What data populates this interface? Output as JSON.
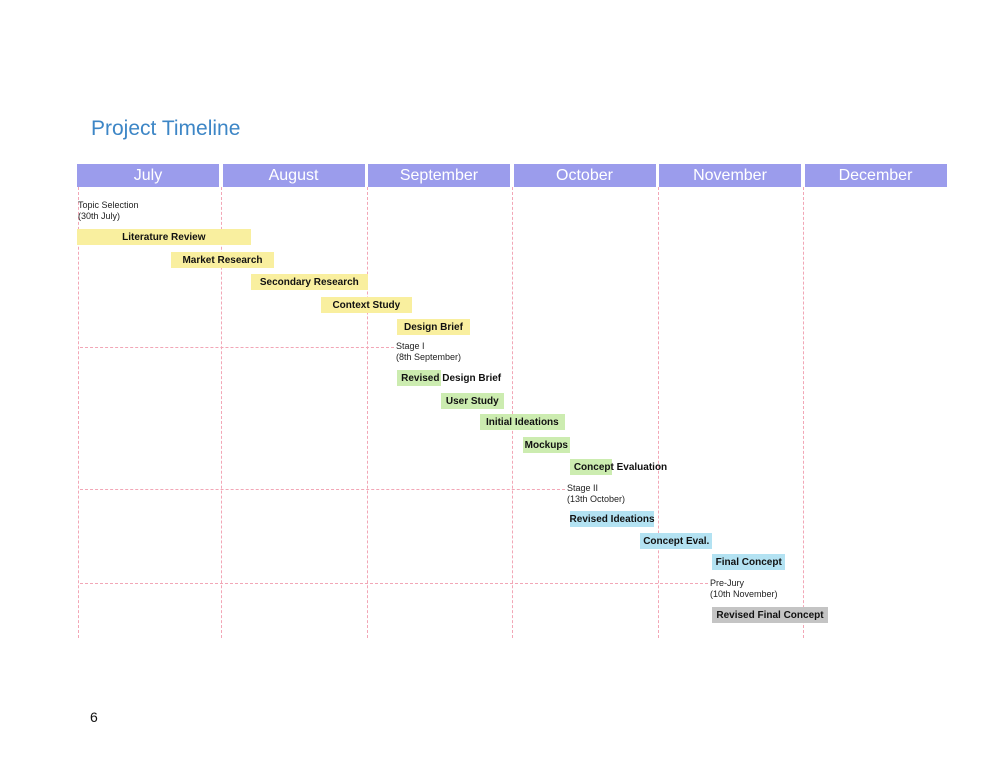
{
  "page": {
    "title": "Project Timeline",
    "page_number": "6"
  },
  "colors": {
    "month_header": "#9b9cec",
    "grid": "#f2a6b6",
    "phase1": "#f9ef9f",
    "phase2": "#ccecb0",
    "phase3": "#b3e2f2",
    "phase4": "#c4c4c4"
  },
  "chart_data": {
    "type": "gantt",
    "title": "Project Timeline",
    "months": [
      "July",
      "August",
      "September",
      "October",
      "November",
      "December"
    ],
    "tasks": [
      {
        "name": "Literature Review",
        "start": "2022-07-01",
        "end": "2022-08-07",
        "phase": "phase1"
      },
      {
        "name": "Market Research",
        "start": "2022-07-21",
        "end": "2022-08-12",
        "phase": "phase1"
      },
      {
        "name": "Secondary Research",
        "start": "2022-08-07",
        "end": "2022-09-01",
        "phase": "phase1"
      },
      {
        "name": "Context Study",
        "start": "2022-08-22",
        "end": "2022-09-10",
        "phase": "phase1"
      },
      {
        "name": "Design Brief",
        "start": "2022-09-07",
        "end": "2022-09-22",
        "phase": "phase1"
      },
      {
        "name": "Revised Design Brief",
        "start": "2022-09-07",
        "end": "2022-09-16",
        "phase": "phase2"
      },
      {
        "name": "User Study",
        "start": "2022-09-16",
        "end": "2022-09-29",
        "phase": "phase2"
      },
      {
        "name": "Initial Ideations",
        "start": "2022-09-24",
        "end": "2022-10-12",
        "phase": "phase2"
      },
      {
        "name": "Mockups",
        "start": "2022-10-03",
        "end": "2022-10-13",
        "phase": "phase2"
      },
      {
        "name": "Concept Evaluation",
        "start": "2022-10-13",
        "end": "2022-10-22",
        "phase": "phase2"
      },
      {
        "name": "Revised Ideations",
        "start": "2022-10-13",
        "end": "2022-10-31",
        "phase": "phase3"
      },
      {
        "name": "Concept Eval.",
        "start": "2022-10-28",
        "end": "2022-11-12",
        "phase": "phase3"
      },
      {
        "name": "Final Concept",
        "start": "2022-11-12",
        "end": "2022-11-27",
        "phase": "phase3"
      },
      {
        "name": "Revised Final Concept",
        "start": "2022-11-12",
        "end": "2022-12-06",
        "phase": "phase4"
      }
    ],
    "milestones": [
      {
        "name": "Topic Selection",
        "date_label": "(30th July)"
      },
      {
        "name": "Stage I",
        "date_label": "(8th September)"
      },
      {
        "name": "Stage II",
        "date_label": "(13th October)"
      },
      {
        "name": "Pre-Jury",
        "date_label": "(10th November)"
      }
    ]
  }
}
